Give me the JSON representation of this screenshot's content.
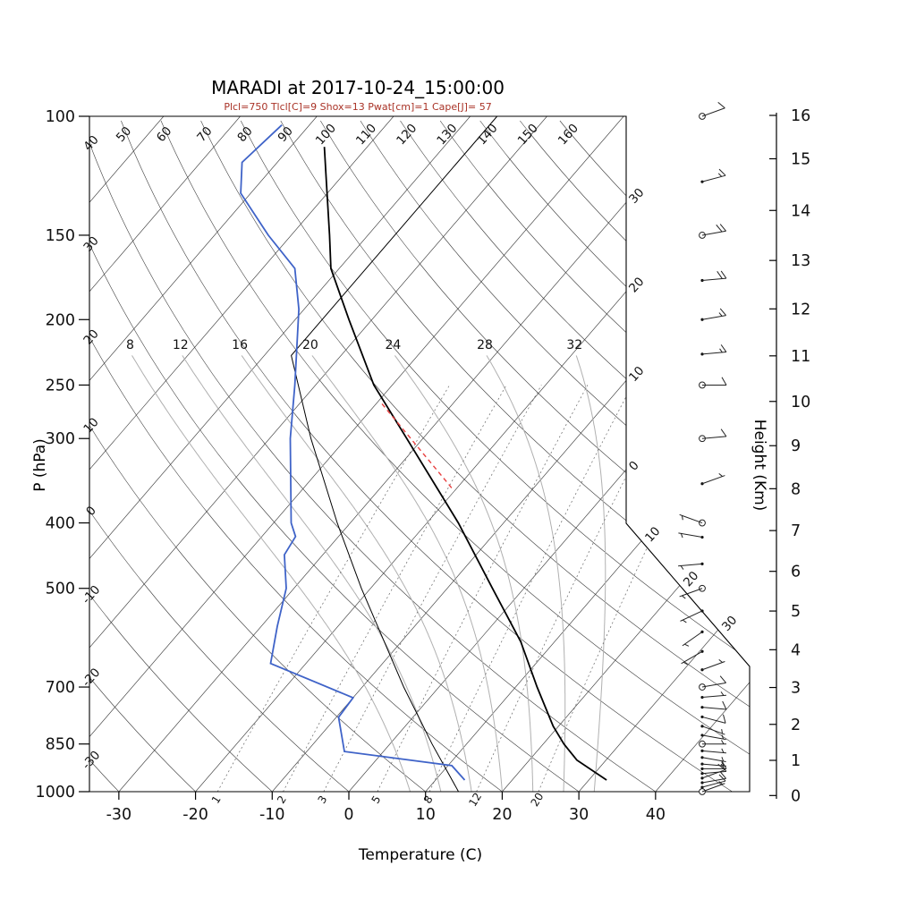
{
  "title": "MARADI at 2017-10-24_15:00:00",
  "subtitle": "Plcl=750 Tlcl[C]=9 Shox=13 Pwat[cm]=1 Cape[J]= 57",
  "axes": {
    "left_label": "P (hPa)",
    "bottom_label": "Temperature (C)",
    "right_label": "Height (Km)"
  },
  "chart_data": {
    "type": "skewt",
    "station": "MARADI",
    "datetime": "2017-10-24_15:00:00",
    "indices": {
      "Plcl": 750,
      "Tlcl_C": 9,
      "Shox": 13,
      "Pwat_cm": 1,
      "Cape_J": 57
    },
    "pressure_ticks_hPa": [
      100,
      150,
      200,
      250,
      300,
      400,
      500,
      700,
      850,
      1000
    ],
    "temp_ticks_C": [
      -30,
      -20,
      -10,
      0,
      10,
      20,
      30,
      40
    ],
    "height_ticks_km": [
      0,
      1,
      2,
      3,
      4,
      5,
      6,
      7,
      8,
      9,
      10,
      11,
      12,
      13,
      14,
      15,
      16
    ],
    "isotherms_C": {
      "min": -120,
      "max": 40,
      "step": 10
    },
    "dry_adiabats_C": {
      "min": -30,
      "max": 160,
      "step": 10
    },
    "dry_adiabat_top_labels": [
      50,
      60,
      70,
      80,
      90,
      100,
      110,
      120,
      130,
      140,
      150,
      160
    ],
    "dry_adiabat_left_labels": [
      40,
      30,
      20,
      10,
      0,
      -10,
      -20,
      -30
    ],
    "isotherm_edge_labels": [
      {
        "text": "30",
        "isotherm": -30
      },
      {
        "text": "20",
        "isotherm": -20
      },
      {
        "text": "10",
        "isotherm": -10
      },
      {
        "text": "0",
        "isotherm": 0
      }
    ],
    "isotherm_diag_labels": [
      {
        "text": "10",
        "isotherm": 10
      },
      {
        "text": "20",
        "isotherm": 20
      },
      {
        "text": "30",
        "isotherm": 30
      }
    ],
    "moist_adiabats_C": [
      8,
      12,
      16,
      20,
      24,
      28,
      32
    ],
    "mixing_ratio_gkg": [
      1,
      2,
      3,
      5,
      8,
      12,
      20
    ],
    "temperature_profile": [
      [
        961,
        32.3
      ],
      [
        898,
        26.2
      ],
      [
        850,
        22.7
      ],
      [
        800,
        19.3
      ],
      [
        700,
        12.8
      ],
      [
        600,
        5.6
      ],
      [
        500,
        -4.1
      ],
      [
        400,
        -15.9
      ],
      [
        300,
        -32.1
      ],
      [
        250,
        -42.4
      ],
      [
        200,
        -53.0
      ],
      [
        168,
        -61.1
      ],
      [
        150,
        -65.0
      ],
      [
        124,
        -71.7
      ],
      [
        111,
        -75.6
      ]
    ],
    "dewpoint_profile": [
      [
        961,
        13.8
      ],
      [
        915,
        10.5
      ],
      [
        872,
        -5.1
      ],
      [
        776,
        -9.7
      ],
      [
        726,
        -10.0
      ],
      [
        646,
        -24.6
      ],
      [
        569,
        -27.9
      ],
      [
        500,
        -31.0
      ],
      [
        446,
        -35.0
      ],
      [
        419,
        -35.6
      ],
      [
        400,
        -37.7
      ],
      [
        300,
        -47.3
      ],
      [
        250,
        -52.7
      ],
      [
        193,
        -60.7
      ],
      [
        168,
        -65.8
      ],
      [
        150,
        -73.0
      ],
      [
        130,
        -81.3
      ],
      [
        117,
        -84.6
      ],
      [
        103,
        -83.6
      ]
    ],
    "reference_profile": [
      [
        1013,
        15.0
      ],
      [
        850,
        5.5
      ],
      [
        700,
        -4.6
      ],
      [
        500,
        -21.2
      ],
      [
        400,
        -31.7
      ],
      [
        300,
        -44.6
      ],
      [
        226,
        -56.5
      ],
      [
        100,
        -56.5
      ]
    ],
    "parcel_path_segment": [
      [
        355,
        -20.7
      ],
      [
        265,
        -39.6
      ]
    ],
    "winds": [
      {
        "p": 1000,
        "dir": 70,
        "spd": 5,
        "sym": "circle"
      },
      {
        "p": 985,
        "dir": 75,
        "spd": 10,
        "sym": "dot"
      },
      {
        "p": 970,
        "dir": 80,
        "spd": 10,
        "sym": "dot"
      },
      {
        "p": 955,
        "dir": 70,
        "spd": 12,
        "sym": "dot"
      },
      {
        "p": 940,
        "dir": 85,
        "spd": 10,
        "sym": "dot"
      },
      {
        "p": 925,
        "dir": 90,
        "spd": 10,
        "sym": "dot"
      },
      {
        "p": 910,
        "dir": 95,
        "spd": 8,
        "sym": "dot"
      },
      {
        "p": 890,
        "dir": 100,
        "spd": 8,
        "sym": "dot"
      },
      {
        "p": 870,
        "dir": 95,
        "spd": 5,
        "sym": "dot"
      },
      {
        "p": 850,
        "dir": 90,
        "spd": 8,
        "sym": "circle"
      },
      {
        "p": 825,
        "dir": 100,
        "spd": 5,
        "sym": "dot"
      },
      {
        "p": 800,
        "dir": 110,
        "spd": 8,
        "sym": "dot"
      },
      {
        "p": 775,
        "dir": 105,
        "spd": 10,
        "sym": "dot"
      },
      {
        "p": 750,
        "dir": 95,
        "spd": 10,
        "sym": "dot"
      },
      {
        "p": 725,
        "dir": 85,
        "spd": 8,
        "sym": "dot"
      },
      {
        "p": 700,
        "dir": 80,
        "spd": 10,
        "sym": "circle"
      },
      {
        "p": 660,
        "dir": 70,
        "spd": 5,
        "sym": "dot"
      },
      {
        "p": 620,
        "dir": 240,
        "spd": 5,
        "sym": "dot"
      },
      {
        "p": 580,
        "dir": 235,
        "spd": 8,
        "sym": "dot"
      },
      {
        "p": 540,
        "dir": 245,
        "spd": 5,
        "sym": "dot"
      },
      {
        "p": 500,
        "dir": 250,
        "spd": 8,
        "sym": "circle"
      },
      {
        "p": 460,
        "dir": 265,
        "spd": 5,
        "sym": "dot"
      },
      {
        "p": 420,
        "dir": 280,
        "spd": 5,
        "sym": "dot"
      },
      {
        "p": 400,
        "dir": 290,
        "spd": 5,
        "sym": "circle"
      },
      {
        "p": 350,
        "dir": 70,
        "spd": 5,
        "sym": "dot"
      },
      {
        "p": 300,
        "dir": 85,
        "spd": 10,
        "sym": "circle"
      },
      {
        "p": 250,
        "dir": 90,
        "spd": 12,
        "sym": "circle"
      },
      {
        "p": 225,
        "dir": 85,
        "spd": 15,
        "sym": "dot"
      },
      {
        "p": 200,
        "dir": 80,
        "spd": 18,
        "sym": "dot"
      },
      {
        "p": 175,
        "dir": 85,
        "spd": 20,
        "sym": "dot"
      },
      {
        "p": 150,
        "dir": 80,
        "spd": 22,
        "sym": "circle"
      },
      {
        "p": 125,
        "dir": 75,
        "spd": 15,
        "sym": "dot"
      },
      {
        "p": 100,
        "dir": 70,
        "spd": 10,
        "sym": "circle"
      }
    ],
    "colors": {
      "temperature": "#000000",
      "dewpoint": "#3f63c8",
      "reference": "#000000",
      "parcel": "#e84040",
      "subtitle": "#a93226",
      "grid": "#3c3c3c",
      "moist": "#b0b0b0",
      "mixing": "#666666"
    }
  }
}
